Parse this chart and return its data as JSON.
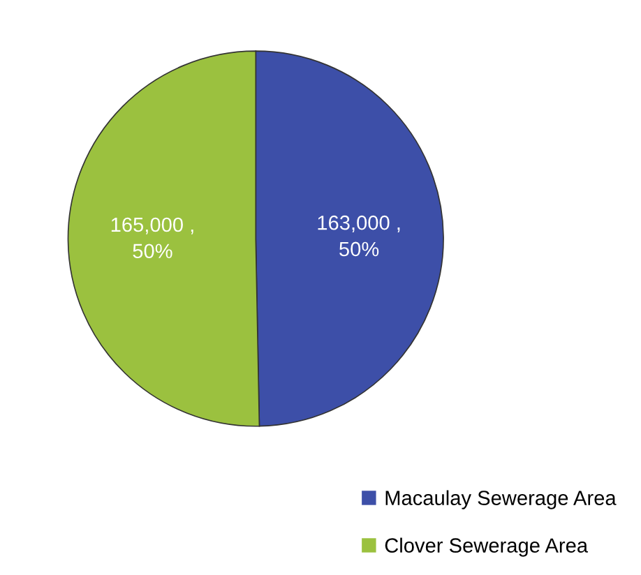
{
  "chart_data": {
    "type": "pie",
    "categories": [
      "Macaulay Sewerage Area",
      "Clover Sewerage Area"
    ],
    "values": [
      163000,
      165000
    ],
    "colors": [
      "#3d4fa8",
      "#9bc13f"
    ],
    "value_labels": [
      "163,000 ,\n50%",
      "165,000 ,\n50%"
    ],
    "legend": "bottom right"
  }
}
